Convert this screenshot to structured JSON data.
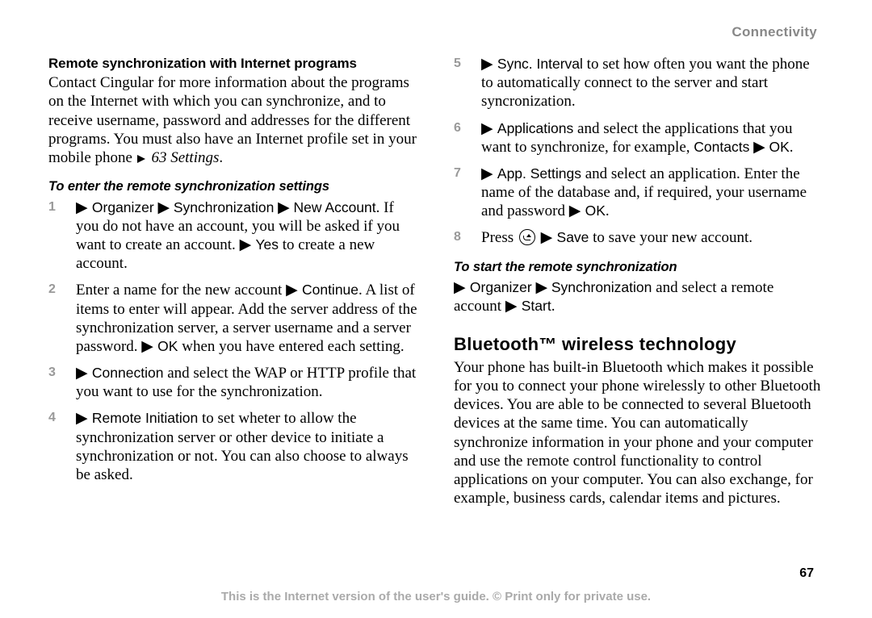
{
  "header": "Connectivity",
  "page_number": "67",
  "footer": "This is the Internet version of the user's guide. © Print only for private use.",
  "colors": {
    "text": "#000000",
    "muted": "#888888",
    "muted2": "#999999",
    "footer": "#aaaaaa",
    "background": "#ffffff"
  },
  "left": {
    "h1": "Remote synchronization with Internet programs",
    "p1a": "Contact Cingular for more information about the programs on the Internet with which you can synchronize, and to receive username, password and addresses for the different programs. You must also have an Internet profile set in your mobile phone ",
    "p1b": "63 Settings",
    "p1c": ".",
    "h2": "To enter the remote synchronization settings",
    "steps": [
      {
        "num": "1",
        "menu1": "Organizer",
        "menu2": "Synchronization",
        "menu3": "New Account",
        "t1": ". If you do not have an account, you will be asked if you want to create an account. ",
        "menu4": "Yes",
        "t2": " to create a new account."
      },
      {
        "num": "2",
        "t1": "Enter a name for the new account ",
        "menu1": "Continue",
        "t2": ". A list of items to enter will appear. Add the server address of the synchronization server, a server username and a server password. ",
        "menu2": "OK",
        "t3": " when you have entered each setting."
      },
      {
        "num": "3",
        "menu1": "Connection",
        "t1": " and select the WAP or HTTP profile that you want to use for the synchronization."
      },
      {
        "num": "4",
        "menu1": "Remote Initiation",
        "t1": " to set wheter to allow the synchronization server or other device to initiate a synchronization or not. You can also choose to always be asked."
      }
    ]
  },
  "right": {
    "steps": [
      {
        "num": "5",
        "menu1": "Sync. Interval",
        "t1": " to set how often you want the phone to automatically connect to the server and start syncronization."
      },
      {
        "num": "6",
        "menu1": "Applications",
        "t1": " and select the applications that you want to synchronize, for example, ",
        "menu2": "Contacts",
        "menu3": "OK",
        "t2": "."
      },
      {
        "num": "7",
        "menu1": "App. Settings",
        "t1": " and select an application. Enter the name of the database and, if required, your username and password ",
        "menu2": "OK",
        "t2": "."
      },
      {
        "num": "8",
        "t1": "Press ",
        "menu1": "Save",
        "t2": " to save your new account."
      }
    ],
    "h2": "To start the remote synchronization",
    "p2_menu1": "Organizer",
    "p2_menu2": "Synchronization",
    "p2_t1": " and select a remote account ",
    "p2_menu3": "Start",
    "p2_t2": ".",
    "h3": "Bluetooth™ wireless technology",
    "p3": "Your phone has built-in Bluetooth which makes it possible for you to connect your phone wirelessly to other Bluetooth devices. You are able to be connected to several Bluetooth devices at the same time. You can automatically synchronize information in your phone and your computer and use the remote control functionality to control applications on your computer. You can also exchange, for example, business cards, calendar items and pictures."
  }
}
